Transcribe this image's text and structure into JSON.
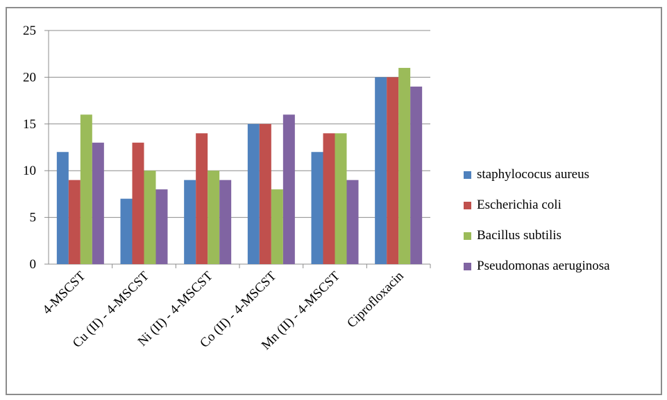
{
  "chart_data": {
    "type": "bar",
    "title": "",
    "xlabel": "",
    "ylabel": "",
    "categories": [
      "4-MSCST",
      "Cu (II) - 4-MSCST",
      "Ni (II) - 4-MSCST",
      "Co (II) - 4-MSCST",
      "Mn (II) - 4-MSCST",
      "Ciprofloxacin"
    ],
    "series": [
      {
        "name": "staphylococus aureus",
        "color": "#4f81bd",
        "values": [
          12,
          7,
          9,
          15,
          12,
          20
        ]
      },
      {
        "name": "Escherichia coli",
        "color": "#c0504d",
        "values": [
          9,
          13,
          14,
          15,
          14,
          20
        ]
      },
      {
        "name": "Bacillus subtilis",
        "color": "#9bbb59",
        "values": [
          16,
          10,
          10,
          8,
          14,
          21
        ]
      },
      {
        "name": "Pseudomonas aeruginosa",
        "color": "#8064a2",
        "values": [
          13,
          8,
          9,
          16,
          9,
          19
        ]
      }
    ],
    "ylim": [
      0,
      25
    ],
    "yticks": [
      "0",
      "5",
      "10",
      "15",
      "20",
      "25"
    ],
    "grid": true,
    "legend_position": "right"
  }
}
